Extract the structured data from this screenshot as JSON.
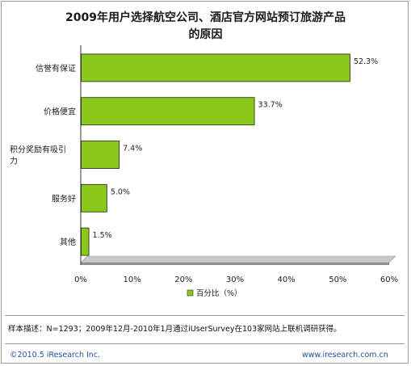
{
  "title": {
    "line1": "2009年用户选择航空公司、酒店官方网站预订旅游产品",
    "line2": "的原因"
  },
  "chart_data": {
    "type": "bar",
    "orientation": "horizontal",
    "categories": [
      "信誉有保证",
      "价格便宜",
      "积分奖励有吸引力",
      "服务好",
      "其他"
    ],
    "category_labels_display": [
      [
        "信誉有保证"
      ],
      [
        "价格便宜"
      ],
      [
        "积分奖励有吸引",
        "力"
      ],
      [
        "服务好"
      ],
      [
        "其他"
      ]
    ],
    "series": [
      {
        "name": "百分比（%）",
        "values": [
          52.3,
          33.7,
          7.4,
          5.0,
          1.5
        ],
        "value_labels": [
          "52.3%",
          "33.7%",
          "7.4%",
          "5.0%",
          "1.5%"
        ]
      }
    ],
    "xlim": [
      0,
      60
    ],
    "xticks": [
      "0%",
      "10%",
      "20%",
      "30%",
      "40%",
      "50%",
      "60%"
    ],
    "xlabel": "",
    "ylabel": "",
    "grid": false,
    "legend": "bottom-center",
    "bar_color": "#8cc71c",
    "bar_edge_color": "#222222"
  },
  "note": "样本描述：N=1293；2009年12月-2010年1月通过iUserSurvey在103家网站上联机调研获得。",
  "footer": {
    "copyright": "©2010.5 iResearch Inc.",
    "website": "www.iresearch.com.cn"
  }
}
